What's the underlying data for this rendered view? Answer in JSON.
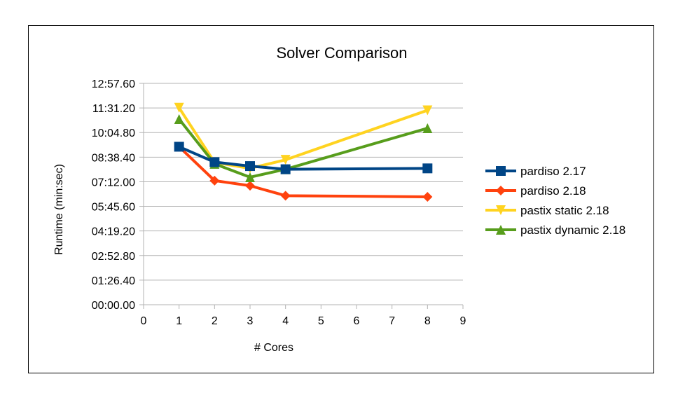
{
  "chart_data": {
    "type": "line",
    "title": "Solver Comparison",
    "xlabel": "# Cores",
    "ylabel": "Runtime (min:sec)",
    "xlim": [
      0,
      9
    ],
    "ylim_seconds": [
      0,
      777.6
    ],
    "x_ticks": [
      "0",
      "1",
      "2",
      "3",
      "4",
      "5",
      "6",
      "7",
      "8",
      "9"
    ],
    "y_ticks": [
      "00:00.00",
      "01:26.40",
      "02:52.80",
      "04:19.20",
      "05:45.60",
      "07:12.00",
      "08:38.40",
      "10:04.80",
      "11:31.20",
      "12:57.60"
    ],
    "grid": "horizontal",
    "legend_position": "right",
    "series": [
      {
        "name": "pardiso 2.17",
        "color": "#004586",
        "marker": "square",
        "x": [
          1,
          2,
          3,
          4,
          8
        ],
        "y": [
          555,
          501,
          487,
          476,
          479
        ]
      },
      {
        "name": "pardiso 2.18",
        "color": "#ff420e",
        "marker": "diamond",
        "x": [
          1,
          2,
          3,
          4,
          8
        ],
        "y": [
          555,
          436,
          418,
          383,
          379
        ]
      },
      {
        "name": "pastix static 2.18",
        "color": "#ffd320",
        "marker": "triangle-down",
        "x": [
          1,
          2,
          3,
          4,
          8
        ],
        "y": [
          692,
          500,
          479,
          509,
          683
        ]
      },
      {
        "name": "pastix dynamic 2.18",
        "color": "#579d1c",
        "marker": "triangle-up",
        "x": [
          1,
          2,
          3,
          4,
          8
        ],
        "y": [
          652,
          495,
          448,
          476,
          620
        ]
      }
    ]
  }
}
